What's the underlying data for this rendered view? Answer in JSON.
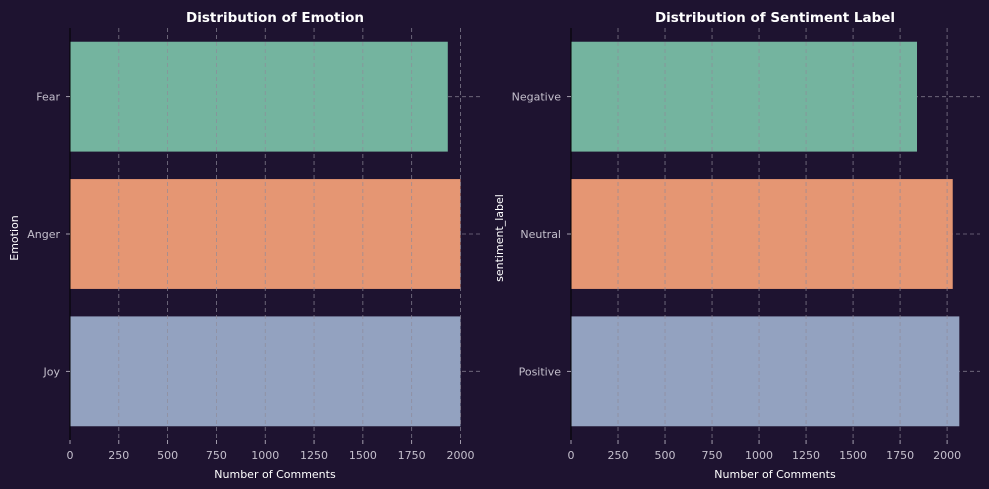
{
  "colors": {
    "background": "#1e1330",
    "bar_colors": [
      "#74b49f",
      "#e59673",
      "#93a2c0"
    ],
    "grid": "#8f8a99",
    "tick_text": "#c4bfcc",
    "title_text": "#ffffff",
    "label_text": "#ffffff"
  },
  "chart_data": [
    {
      "type": "bar",
      "orientation": "horizontal",
      "title": "Distribution of Emotion",
      "xlabel": "Number of Comments",
      "ylabel": "Emotion",
      "categories": [
        "Fear",
        "Anger",
        "Joy"
      ],
      "values": [
        1935,
        2000,
        2000
      ],
      "xlim": [
        0,
        2100
      ],
      "xticks": [
        0,
        250,
        500,
        750,
        1000,
        1250,
        1500,
        1750,
        2000
      ],
      "grid": true
    },
    {
      "type": "bar",
      "orientation": "horizontal",
      "title": "Distribution of Sentiment Label",
      "xlabel": "Number of Comments",
      "ylabel": "sentiment_label",
      "categories": [
        "Negative",
        "Neutral",
        "Positive"
      ],
      "values": [
        1840,
        2030,
        2065
      ],
      "xlim": [
        0,
        2175
      ],
      "xticks": [
        0,
        250,
        500,
        750,
        1000,
        1250,
        1500,
        1750,
        2000
      ],
      "grid": true
    }
  ]
}
